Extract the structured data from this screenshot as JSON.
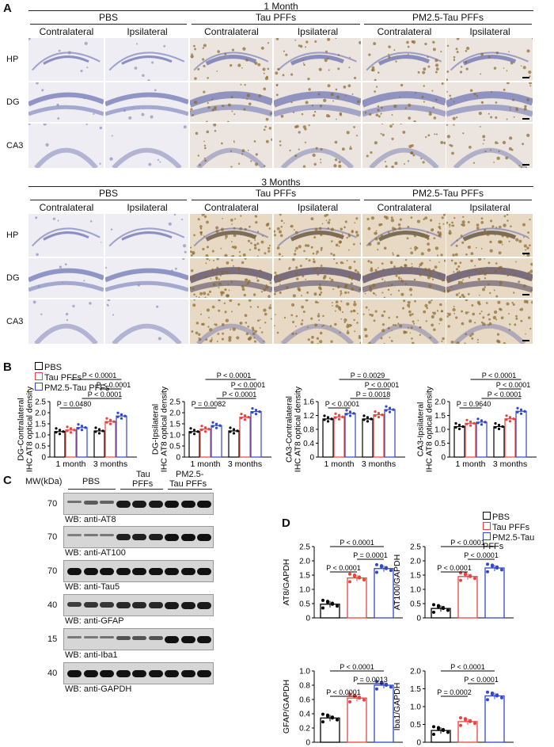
{
  "panels": {
    "A": "A",
    "B": "B",
    "C": "C",
    "D": "D"
  },
  "month1": {
    "title": "1 Month",
    "groups": [
      "PBS",
      "Tau PFFs",
      "PM2.5-Tau PFFs"
    ],
    "sides": [
      "Contralateral",
      "Ipsilateral",
      "Contralateral",
      "Ipsilateral",
      "Contralateral",
      "Ipsilateral"
    ],
    "rows": [
      "HP",
      "DG",
      "CA3"
    ]
  },
  "month3": {
    "title": "3 Months",
    "groups": [
      "PBS",
      "Tau PFFs",
      "PM2.5-Tau PFFs"
    ],
    "sides": [
      "Contralateral",
      "Ipsilateral",
      "Contralateral",
      "Ipsilateral",
      "Contralateral",
      "Ipsilateral"
    ],
    "rows": [
      "HP",
      "DG",
      "CA3"
    ]
  },
  "colors": {
    "pbs": "#000000",
    "tau": "#e8433f",
    "pm": "#3347c9",
    "stain": "#8a6a2c",
    "hema": "#6a6fb0"
  },
  "legend_b": [
    "PBS",
    "Tau PFFs",
    "PM2.5-Tau PFFs"
  ],
  "legend_d": [
    "PBS",
    "Tau PFFs",
    "PM2.5-Tau PFFs"
  ],
  "chart_data": [
    {
      "type": "bar",
      "ylabel": "DG-Contralateral IHC AT8 optical density",
      "ylabel_lines": [
        "DG-Contralateral",
        "IHC AT8 optical density"
      ],
      "categories": [
        "1 month",
        "3 months"
      ],
      "series": [
        {
          "name": "PBS",
          "values": [
            1.15,
            1.18
          ]
        },
        {
          "name": "Tau PFFs",
          "values": [
            1.22,
            1.6
          ]
        },
        {
          "name": "PM2.5-Tau PFFs",
          "values": [
            1.33,
            1.85
          ]
        }
      ],
      "ylim": [
        0,
        2.5
      ],
      "yticks": [
        "0",
        "0.5",
        "1.0",
        "1.5",
        "2.0",
        "2.5"
      ],
      "annotations": [
        {
          "text": "P = 0.0480",
          "from": [
            0,
            0
          ],
          "to": [
            0,
            2
          ]
        },
        {
          "text": "P < 0.0001",
          "from": [
            0,
            2
          ],
          "to": [
            1,
            2
          ]
        },
        {
          "text": "P < 0.0001",
          "from": [
            1,
            0
          ],
          "to": [
            1,
            2
          ]
        },
        {
          "text": "P < 0.0001",
          "from": [
            0,
            1
          ],
          "to": [
            1,
            2
          ]
        }
      ]
    },
    {
      "type": "bar",
      "ylabel": "DG-Ipsilateral IHC AT8 optical density",
      "ylabel_lines": [
        "DG-Ipsilateral",
        "IHC AT8 optical density"
      ],
      "categories": [
        "1 month",
        "3 months"
      ],
      "series": [
        {
          "name": "PBS",
          "values": [
            1.15,
            1.18
          ]
        },
        {
          "name": "Tau PFFs",
          "values": [
            1.26,
            1.8
          ]
        },
        {
          "name": "PM2.5-Tau PFFs",
          "values": [
            1.42,
            2.05
          ]
        }
      ],
      "ylim": [
        0,
        2.5
      ],
      "yticks": [
        "0",
        "0.5",
        "1.0",
        "1.5",
        "2.0",
        "2.5"
      ],
      "annotations": [
        {
          "text": "P = 0.0082",
          "from": [
            0,
            0
          ],
          "to": [
            0,
            2
          ]
        },
        {
          "text": "P < 0.0001",
          "from": [
            0,
            2
          ],
          "to": [
            1,
            2
          ]
        },
        {
          "text": "P < 0.0001",
          "from": [
            1,
            0
          ],
          "to": [
            1,
            2
          ]
        },
        {
          "text": "P < 0.0001",
          "from": [
            0,
            1
          ],
          "to": [
            1,
            2
          ]
        }
      ]
    },
    {
      "type": "bar",
      "ylabel": "CA3-Contralateral IHC AT8 optical density",
      "ylabel_lines": [
        "CA3-Contralateral",
        "IHC AT8 optical density"
      ],
      "categories": [
        "1 month",
        "3 months"
      ],
      "series": [
        {
          "name": "PBS",
          "values": [
            1.1,
            1.1
          ]
        },
        {
          "name": "Tau PFFs",
          "values": [
            1.16,
            1.22
          ]
        },
        {
          "name": "PM2.5-Tau PFFs",
          "values": [
            1.26,
            1.37
          ]
        }
      ],
      "ylim": [
        0,
        1.6
      ],
      "yticks": [
        "0",
        "0.4",
        "0.8",
        "1.2",
        "1.6"
      ],
      "annotations": [
        {
          "text": "P < 0.0001",
          "from": [
            0,
            0
          ],
          "to": [
            0,
            2
          ]
        },
        {
          "text": "P = 0.0018",
          "from": [
            0,
            2
          ],
          "to": [
            1,
            2
          ]
        },
        {
          "text": "P < 0.0001",
          "from": [
            1,
            0
          ],
          "to": [
            1,
            2
          ]
        },
        {
          "text": "P = 0.0029",
          "from": [
            0,
            1
          ],
          "to": [
            1,
            2
          ]
        }
      ]
    },
    {
      "type": "bar",
      "ylabel": "CA3-Ipsilateral IHC AT8 optical density",
      "ylabel_lines": [
        "CA3-Ipsilateral",
        "IHC AT8 optical density"
      ],
      "categories": [
        "1 month",
        "3 months"
      ],
      "series": [
        {
          "name": "PBS",
          "values": [
            1.1,
            1.1
          ]
        },
        {
          "name": "Tau PFFs",
          "values": [
            1.22,
            1.38
          ]
        },
        {
          "name": "PM2.5-Tau PFFs",
          "values": [
            1.26,
            1.65
          ]
        }
      ],
      "ylim": [
        0,
        2.0
      ],
      "yticks": [
        "0",
        "0.5",
        "1.0",
        "1.5",
        "2.0"
      ],
      "annotations": [
        {
          "text": "P = 0.9640",
          "from": [
            0,
            0
          ],
          "to": [
            0,
            2
          ]
        },
        {
          "text": "P < 0.0001",
          "from": [
            0,
            2
          ],
          "to": [
            1,
            2
          ]
        },
        {
          "text": "P < 0.0001",
          "from": [
            1,
            0
          ],
          "to": [
            1,
            2
          ]
        },
        {
          "text": "P < 0.0001",
          "from": [
            0,
            1
          ],
          "to": [
            1,
            2
          ]
        }
      ]
    },
    {
      "type": "bar",
      "ylabel": "AT8/GAPDH",
      "ylabel_lines": [
        "AT8/GAPDH"
      ],
      "categories": [
        "PBS",
        "Tau PFFs",
        "PM2.5-Tau PFFs"
      ],
      "values": [
        0.48,
        1.4,
        1.73
      ],
      "ylim": [
        0,
        2.5
      ],
      "yticks": [
        "0",
        "0.5",
        "1.0",
        "1.5",
        "2.0",
        "2.5"
      ],
      "annotations": [
        {
          "text": "P < 0.0001",
          "from": 0,
          "to": 1
        },
        {
          "text": "P = 0.0001",
          "from": 1,
          "to": 2
        },
        {
          "text": "P < 0.0001",
          "from": 0,
          "to": 2
        }
      ]
    },
    {
      "type": "bar",
      "ylabel": "AT100/GAPDH",
      "ylabel_lines": [
        "AT100/GAPDH"
      ],
      "categories": [
        "PBS",
        "Tau PFFs",
        "PM2.5-Tau PFFs"
      ],
      "values": [
        0.33,
        1.45,
        1.75
      ],
      "ylim": [
        0,
        2.5
      ],
      "yticks": [
        "0",
        "0.5",
        "1.0",
        "1.5",
        "2.0",
        "2.5"
      ],
      "annotations": [
        {
          "text": "P < 0.0001",
          "from": 0,
          "to": 1
        },
        {
          "text": "P < 0.0001",
          "from": 1,
          "to": 2
        },
        {
          "text": "P < 0.0001",
          "from": 0,
          "to": 2
        }
      ]
    },
    {
      "type": "bar",
      "ylabel": "GFAP/GAPDH",
      "ylabel_lines": [
        "GFAP/GAPDH"
      ],
      "categories": [
        "PBS",
        "Tau PFFs",
        "PM2.5-Tau PFFs"
      ],
      "values": [
        0.34,
        0.62,
        0.8
      ],
      "ylim": [
        0,
        1.0
      ],
      "yticks": [
        "0",
        "0.2",
        "0.4",
        "0.6",
        "0.8",
        "1.0"
      ],
      "annotations": [
        {
          "text": "P < 0.0001",
          "from": 0,
          "to": 1
        },
        {
          "text": "P = 0.0013",
          "from": 1,
          "to": 2
        },
        {
          "text": "P < 0.0001",
          "from": 0,
          "to": 2
        }
      ]
    },
    {
      "type": "bar",
      "ylabel": "Iba1/GAPDH",
      "ylabel_lines": [
        "Iba1/GAPDH"
      ],
      "categories": [
        "PBS",
        "Tau PFFs",
        "PM2.5-Tau PFFs"
      ],
      "values": [
        0.33,
        0.58,
        1.3
      ],
      "ylim": [
        0,
        2.0
      ],
      "yticks": [
        "0",
        "0.5",
        "1.0",
        "1.5",
        "2.0"
      ],
      "annotations": [
        {
          "text": "P = 0.0002",
          "from": 0,
          "to": 1
        },
        {
          "text": "P < 0.0001",
          "from": 1,
          "to": 2
        },
        {
          "text": "P < 0.0001",
          "from": 0,
          "to": 2
        }
      ]
    }
  ],
  "blot": {
    "mw_header": "MW(kDa)",
    "lanes": [
      "PBS",
      "Tau\nPFFs",
      "PM2.5-\nTau PFFs"
    ],
    "lane_pbs": "PBS",
    "lane_tau_1": "Tau",
    "lane_tau_2": "PFFs",
    "lane_pm_1": "PM2.5-",
    "lane_pm_2": "Tau PFFs",
    "rows": [
      {
        "mw": "70",
        "label": "WB: anti-AT8",
        "intensity": [
          0.35,
          0.5,
          0.45,
          0.95,
          0.95,
          0.95,
          1.0,
          1.0,
          1.0
        ]
      },
      {
        "mw": "70",
        "label": "WB: anti-AT100",
        "intensity": [
          0.25,
          0.3,
          0.3,
          0.9,
          0.9,
          0.9,
          1.0,
          1.0,
          1.0
        ]
      },
      {
        "mw": "70",
        "label": "WB: anti-Tau5",
        "intensity": [
          1,
          1,
          1,
          1,
          1,
          1,
          1,
          1,
          1
        ]
      },
      {
        "mw": "40",
        "label": "WB: anti-GFAP",
        "intensity": [
          0.7,
          0.75,
          0.75,
          0.85,
          0.85,
          0.85,
          0.95,
          0.95,
          0.95
        ]
      },
      {
        "mw": "15",
        "label": "WB: anti-Iba1",
        "intensity": [
          0.3,
          0.3,
          0.35,
          0.55,
          0.55,
          0.55,
          1.0,
          1.0,
          1.0
        ]
      },
      {
        "mw": "40",
        "label": "WB: anti-GAPDH",
        "intensity": [
          1,
          1,
          1,
          1,
          1,
          1,
          1,
          1,
          1
        ]
      }
    ]
  }
}
